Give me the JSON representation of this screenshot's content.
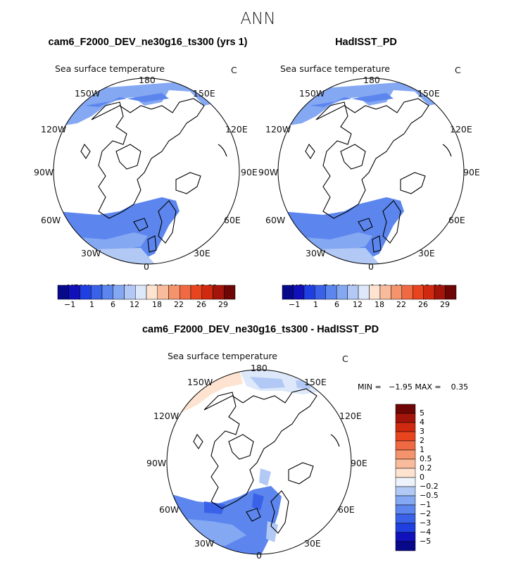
{
  "main_title": "ANN",
  "panels": [
    {
      "title": "cam6_F2000_DEV_ne30g16_ts300 (yrs 1)",
      "variable": "Sea surface temperature",
      "units": "C",
      "stats": {
        "mean_label": "MEAN=",
        "mean": "6.95",
        "min_label": "Min=",
        "min": "0.63",
        "max_label": "Max=",
        "max": "13.31"
      }
    },
    {
      "title": "HadISST_PD",
      "variable": "Sea surface temperature",
      "units": "C",
      "stats": {
        "mean_label": "MEAN=",
        "mean": "7.64",
        "min_label": "Min=",
        "min": "1.10",
        "max_label": "Max=",
        "max": "13.68"
      }
    },
    {
      "title": "cam6_F2000_DEV_ne30g16_ts300 - HadISST_PD",
      "variable": "Sea surface temperature",
      "units": "C",
      "minmax_text": "MIN =   −1.95 MAX =    0.35"
    }
  ],
  "lon_labels": {
    "top": "180",
    "top_left": "150W",
    "top_right": "150E",
    "upper_left": "120W",
    "upper_right": "120E",
    "left": "90W",
    "right": "90E",
    "lower_left": "60W",
    "lower_right": "60E",
    "bottom_left": "30W",
    "bottom_right": "30E",
    "bottom": "0"
  },
  "abs_colorbar": {
    "tick_labels": [
      "−1",
      "1",
      "6",
      "12",
      "18",
      "22",
      "26",
      "29"
    ],
    "colors": [
      "#08088a",
      "#1111bb",
      "#1f3fe0",
      "#3a62e8",
      "#5c86ee",
      "#84a8f2",
      "#b2c9f6",
      "#dde8fa",
      "#fde3d0",
      "#f8bb9c",
      "#f4936c",
      "#ef6a43",
      "#e8451f",
      "#cf2a10",
      "#a3150a",
      "#6e0606"
    ]
  },
  "diff_colorbar": {
    "levels": [
      "5",
      "4",
      "3",
      "2",
      "1",
      "0.5",
      "0.2",
      "0",
      "−0.2",
      "−0.5",
      "−1",
      "−2",
      "−3",
      "−4",
      "−5"
    ],
    "colors": [
      "#6e0606",
      "#a3150a",
      "#cf2a10",
      "#e8451f",
      "#ef6a43",
      "#f4936c",
      "#f8bb9c",
      "#fde3d0",
      "#eef3fb",
      "#b2c9f6",
      "#84a8f2",
      "#5c86ee",
      "#3a62e8",
      "#1f3fe0",
      "#1111bb",
      "#08088a"
    ]
  }
}
